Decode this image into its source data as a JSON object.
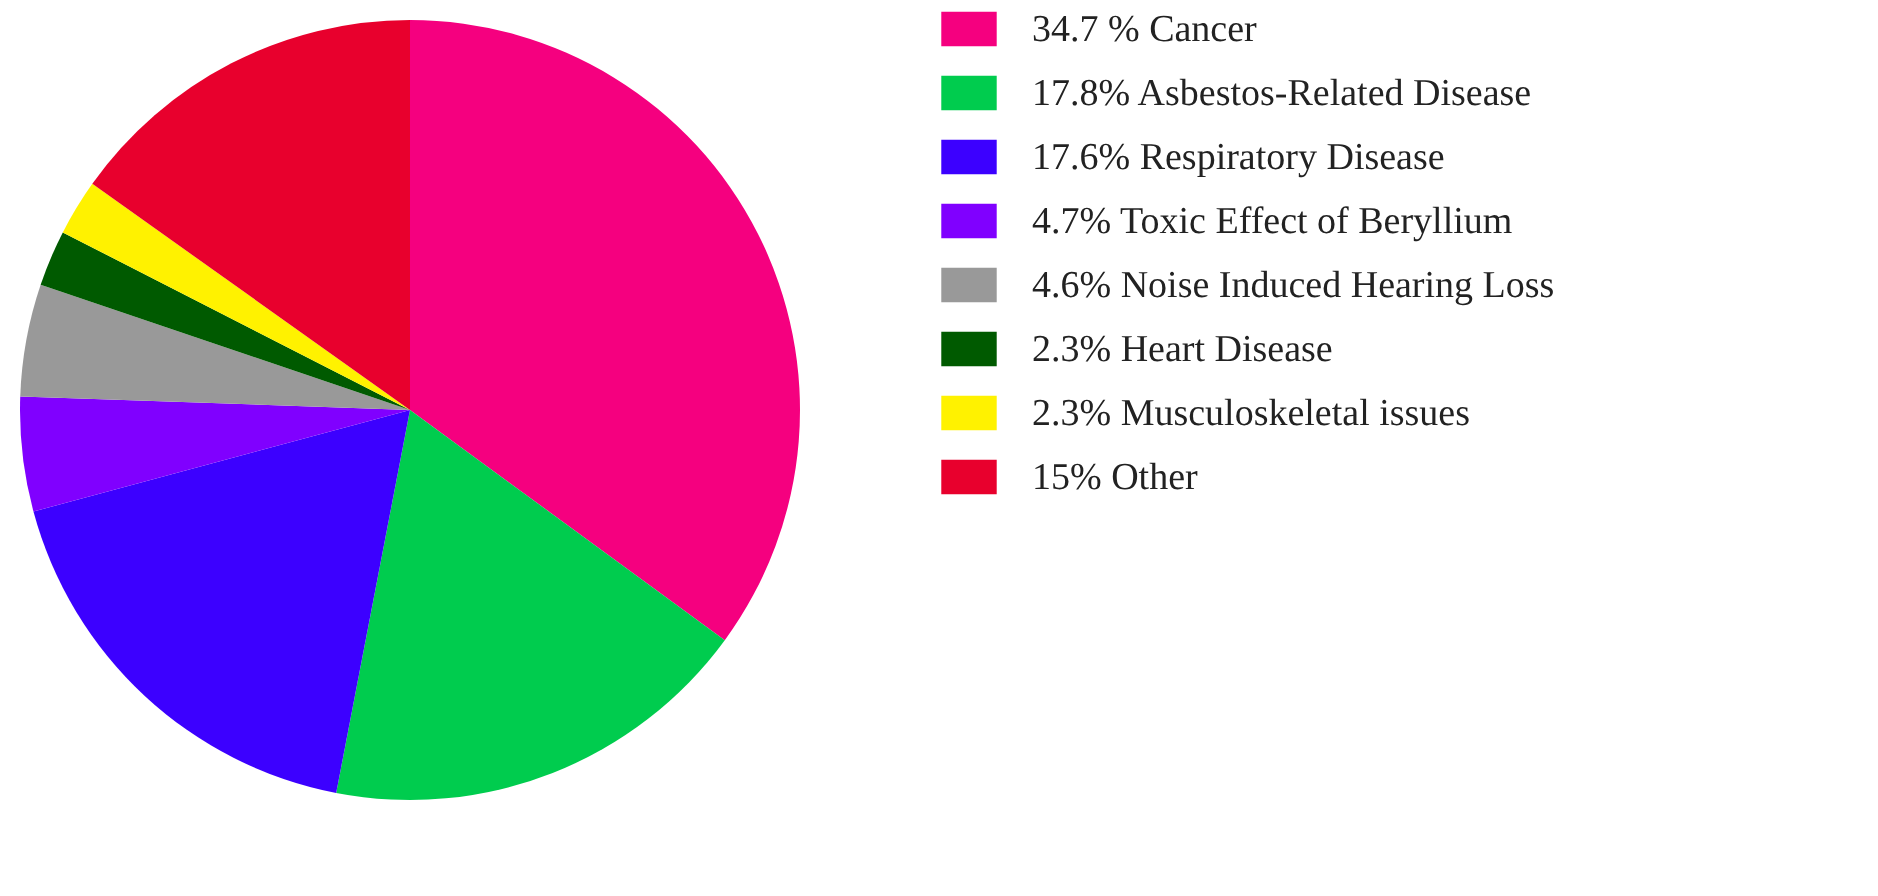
{
  "chart_data": {
    "type": "pie",
    "categories": [
      "34.7 % Cancer",
      "17.8% Asbestos-Related Disease",
      "17.6% Respiratory Disease",
      "4.7%  Toxic Effect of Beryllium",
      "4.6%  Noise Induced Hearing Loss",
      "2.3% Heart Disease",
      "2.3% Musculoskeletal issues",
      "15% Other"
    ],
    "values": [
      34.7,
      17.8,
      17.6,
      4.7,
      4.6,
      2.3,
      2.3,
      15
    ],
    "colors": [
      "#f5007f",
      "#00cc4e",
      "#3c00ff",
      "#8000ff",
      "#999999",
      "#005a00",
      "#fff200",
      "#e8002d"
    ],
    "legend": "right"
  }
}
